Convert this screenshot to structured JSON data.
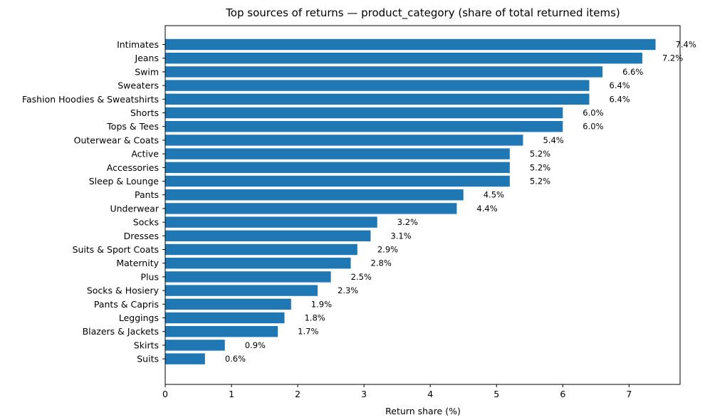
{
  "chart_data": {
    "type": "bar",
    "orientation": "horizontal",
    "title": "Top sources of returns — product_category (share of total returned items)",
    "xlabel": "Return share (%)",
    "ylabel": "",
    "xlim": [
      0,
      7.77
    ],
    "xticks": [
      0,
      1,
      2,
      3,
      4,
      5,
      6,
      7
    ],
    "grid": false,
    "bar_color": "#1f77b4",
    "categories": [
      "Intimates",
      "Jeans",
      "Swim",
      "Sweaters",
      "Fashion Hoodies & Sweatshirts",
      "Shorts",
      "Tops & Tees",
      "Outerwear & Coats",
      "Active",
      "Accessories",
      "Sleep & Lounge",
      "Pants",
      "Underwear",
      "Socks",
      "Dresses",
      "Suits & Sport Coats",
      "Maternity",
      "Plus",
      "Socks & Hosiery",
      "Pants & Capris",
      "Leggings",
      "Blazers & Jackets",
      "Skirts",
      "Suits"
    ],
    "values": [
      7.4,
      7.2,
      6.6,
      6.4,
      6.4,
      6.0,
      6.0,
      5.4,
      5.2,
      5.2,
      5.2,
      4.5,
      4.4,
      3.2,
      3.1,
      2.9,
      2.8,
      2.5,
      2.3,
      1.9,
      1.8,
      1.7,
      0.9,
      0.6
    ],
    "data_labels": [
      "7.4%",
      "7.2%",
      "6.6%",
      "6.4%",
      "6.4%",
      "6.0%",
      "6.0%",
      "5.4%",
      "5.2%",
      "5.2%",
      "5.2%",
      "4.5%",
      "4.4%",
      "3.2%",
      "3.1%",
      "2.9%",
      "2.8%",
      "2.5%",
      "2.3%",
      "1.9%",
      "1.8%",
      "1.7%",
      "0.9%",
      "0.6%"
    ]
  }
}
